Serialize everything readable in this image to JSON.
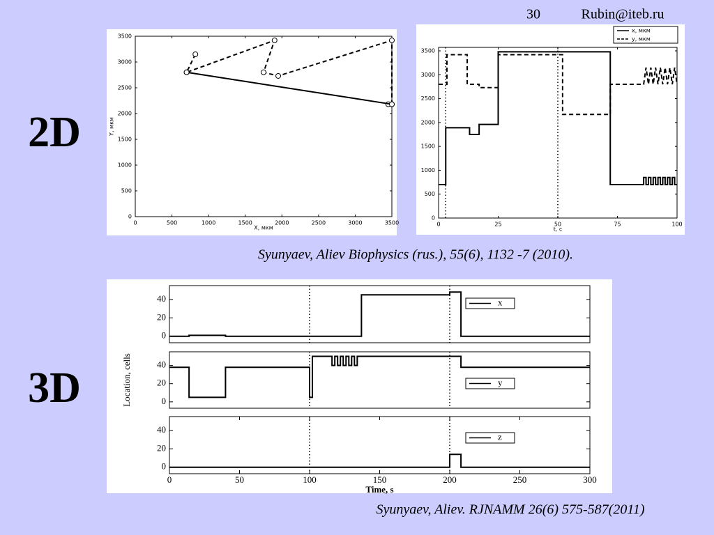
{
  "slide": {
    "page_number": "30",
    "author": "Rubin@iteb.ru",
    "label_2d": "2D",
    "label_3d": "3D",
    "citation_2d": "Syunyaev, Aliev Biophysics (rus.), 55(6), 1132 -7 (2010).",
    "citation_3d": "Syunyaev, Aliev. RJNAMM  26(6) 575-587(2011)"
  },
  "chart_data": [
    {
      "type": "line",
      "xlabel": "X, мкм",
      "ylabel": "Y, мкм",
      "xlim": [
        0,
        3500
      ],
      "xticks": [
        0,
        500,
        1000,
        1500,
        2000,
        2500,
        3000,
        3500
      ],
      "ylim": [
        0,
        3500
      ],
      "yticks": [
        0,
        500,
        1000,
        1500,
        2000,
        2500,
        3000,
        3500
      ],
      "markers": true,
      "series": [
        {
          "color": "#000000",
          "style": "dashed",
          "x": [
            820,
            700,
            1900,
            1750,
            1950,
            3500,
            3500,
            3450
          ],
          "values": [
            3150,
            2800,
            3420,
            2800,
            2730,
            3420,
            2180,
            2180
          ]
        },
        {
          "color": "#000000",
          "style": "solid",
          "x": [
            3500,
            700
          ],
          "values": [
            2180,
            2800
          ]
        }
      ]
    },
    {
      "type": "line",
      "xlabel": "t, с",
      "xlim": [
        0,
        100
      ],
      "xticks": [
        0,
        25,
        50,
        75,
        100
      ],
      "ylim": [
        0,
        3500
      ],
      "yticks": [
        0,
        500,
        1000,
        1500,
        2000,
        2500,
        3000,
        3500
      ],
      "vlines": [
        3,
        50
      ],
      "legend": "upper right",
      "series": [
        {
          "name": "x, мкм",
          "color": "#000000",
          "style": "solid",
          "x": [
            0,
            3,
            3,
            13,
            13,
            17,
            17,
            25,
            25,
            72,
            72,
            86,
            86,
            87,
            87,
            88,
            88,
            89,
            89,
            90,
            90,
            91,
            91,
            92,
            92,
            93,
            93,
            94,
            94,
            95,
            95,
            96,
            96,
            97,
            97,
            98,
            98,
            99,
            99,
            100
          ],
          "values": [
            700,
            700,
            1890,
            1890,
            1750,
            1750,
            1960,
            1960,
            3480,
            3480,
            700,
            700,
            850,
            850,
            700,
            700,
            850,
            850,
            700,
            700,
            850,
            850,
            700,
            700,
            850,
            850,
            700,
            700,
            850,
            850,
            700,
            700,
            850,
            850,
            700,
            700,
            850,
            850,
            700,
            700
          ]
        },
        {
          "name": "y, мкм",
          "color": "#000000",
          "style": "dashed",
          "x": [
            0,
            3.5,
            3.5,
            12,
            12,
            17,
            17,
            25,
            25,
            52,
            52,
            72,
            72,
            86,
            87,
            88,
            89,
            90,
            91,
            92,
            93,
            94,
            95,
            96,
            97,
            98,
            99,
            100
          ],
          "values": [
            2800,
            2800,
            3420,
            3420,
            2800,
            2800,
            2730,
            2730,
            3420,
            3420,
            2170,
            2170,
            2800,
            2800,
            3150,
            2800,
            3150,
            2800,
            3150,
            2800,
            3150,
            2800,
            3150,
            2800,
            3150,
            2800,
            3150,
            2800
          ]
        }
      ]
    },
    {
      "type": "line",
      "xlim": [
        0,
        300
      ],
      "ylim": [
        -7,
        55
      ],
      "yticks": [
        0,
        20,
        40
      ],
      "vlines": [
        100,
        200
      ],
      "series": [
        {
          "name": "x",
          "color": "#000000",
          "style": "solid",
          "x": [
            0,
            14,
            14,
            40,
            40,
            137,
            137,
            200,
            200,
            208,
            208,
            300
          ],
          "values": [
            0,
            0,
            1,
            1,
            0,
            0,
            45,
            45,
            48,
            48,
            0,
            0
          ]
        }
      ]
    },
    {
      "type": "line",
      "xlim": [
        0,
        300
      ],
      "ylim": [
        -7,
        55
      ],
      "yticks": [
        0,
        20,
        40
      ],
      "vlines": [
        100,
        200
      ],
      "ylabel": "Location, cells",
      "series": [
        {
          "name": "y",
          "color": "#000000",
          "style": "solid",
          "x": [
            0,
            14,
            14,
            40,
            40,
            100,
            100,
            102,
            102,
            116,
            116,
            118,
            118,
            120,
            120,
            122,
            122,
            124,
            124,
            126,
            126,
            128,
            128,
            130,
            130,
            132,
            132,
            134,
            134,
            208,
            208,
            300
          ],
          "values": [
            38,
            38,
            5,
            5,
            38,
            38,
            5,
            5,
            50,
            50,
            40,
            40,
            50,
            50,
            40,
            40,
            50,
            50,
            40,
            40,
            50,
            50,
            40,
            40,
            50,
            50,
            40,
            40,
            50,
            50,
            38,
            38
          ]
        }
      ]
    },
    {
      "type": "line",
      "xlabel": "Time, s",
      "xlim": [
        0,
        300
      ],
      "xticks": [
        0,
        50,
        100,
        150,
        200,
        250,
        300
      ],
      "ylim": [
        -7,
        55
      ],
      "yticks": [
        0,
        20,
        40
      ],
      "vlines": [
        100,
        200
      ],
      "series": [
        {
          "name": "z",
          "color": "#000000",
          "style": "solid",
          "x": [
            0,
            200,
            200,
            208,
            208,
            300
          ],
          "values": [
            0,
            0,
            14,
            14,
            0,
            0
          ]
        }
      ]
    }
  ]
}
